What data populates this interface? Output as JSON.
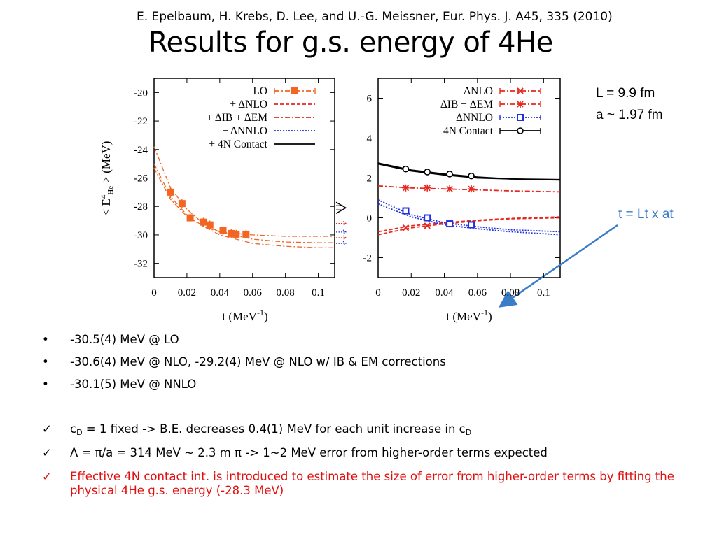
{
  "citation": "E. Epelbaum, H. Krebs, D. Lee, and U.-G. Meissner, Eur. Phys. J. A45, 335 (2010)",
  "title": "Results for g.s. energy of 4He",
  "params": {
    "L": "L = 9.9 fm",
    "a": "a ~ 1.97 fm"
  },
  "t_note": "t = Lt x at",
  "bullets": [
    {
      "marker": "•",
      "text": "-30.5(4) MeV @ LO"
    },
    {
      "marker": "•",
      "text": "-30.6(4) MeV @ NLO, -29.2(4) MeV @ NLO w/ IB & EM corrections"
    },
    {
      "marker": "•",
      "text": "-30.1(5) MeV @ NNLO"
    }
  ],
  "checks": [
    {
      "marker": "✓",
      "pre": "c",
      "sub1": "D",
      "mid": " = 1 fixed -> B.E. decreases 0.4(1) MeV for each unit increase in c",
      "sub2": "D",
      "color": "#000000"
    },
    {
      "marker": "✓",
      "text": "Λ = π/a = 314 MeV ~ 2.3 m  π   -> 1~2 MeV error from higher-order terms expected",
      "color": "#000000"
    },
    {
      "marker": "✓",
      "text": " Effective 4N contact int. is introduced to estimate the size of error from higher-order terms by fitting the physical 4He g.s. energy (-28.3 MeV)",
      "color": "#e01010"
    }
  ],
  "chart_data": [
    {
      "type": "line",
      "xlabel": "t (MeV",
      "xlabel_sup": "-1",
      "xlabel_end": ")",
      "ylabel": "< E",
      "ylabel_sup": "4",
      "ylabel_sub": "He",
      "ylabel_end": " > (MeV)",
      "xlim": [
        0,
        0.11
      ],
      "ylim": [
        -33,
        -19
      ],
      "xticks": [
        "0",
        "0.02",
        "0.04",
        "0.06",
        "0.08",
        "0.1"
      ],
      "xtick_values": [
        0,
        0.02,
        0.04,
        0.06,
        0.08,
        0.1
      ],
      "yticks": [
        "-20",
        "-22",
        "-24",
        "-26",
        "-28",
        "-30",
        "-32"
      ],
      "ytick_values": [
        -20,
        -22,
        -24,
        -26,
        -28,
        -30,
        -32
      ],
      "legend": [
        "LO",
        "+ ΔNLO",
        "+ ΔIB + ΔEM",
        "+ ΔNNLO",
        "+ 4N Contact"
      ],
      "legend_colors": [
        "#f26522",
        "#e8281e",
        "#e8281e",
        "#2030e0",
        "#000000"
      ],
      "legend_placement": "top-right",
      "series": [
        {
          "name": "LO",
          "color": "#f26522",
          "points": [
            {
              "x": 0.01,
              "y": -27.0,
              "err": 0.4
            },
            {
              "x": 0.017,
              "y": -27.8,
              "err": 0.3
            },
            {
              "x": 0.022,
              "y": -28.8,
              "err": 0.3
            },
            {
              "x": 0.03,
              "y": -29.1,
              "err": 0.3
            },
            {
              "x": 0.034,
              "y": -29.3,
              "err": 0.3
            },
            {
              "x": 0.042,
              "y": -29.7,
              "err": 0.3
            },
            {
              "x": 0.047,
              "y": -29.9,
              "err": 0.3
            },
            {
              "x": 0.05,
              "y": -29.95,
              "err": 0.3
            },
            {
              "x": 0.056,
              "y": -29.95,
              "err": 0.3
            }
          ],
          "fits": [
            {
              "x": [
                0,
                0.01,
                0.02,
                0.03,
                0.04,
                0.06,
                0.08,
                0.1,
                0.11
              ],
              "y": [
                -23.8,
                -26.7,
                -28.2,
                -29.2,
                -29.8,
                -30.3,
                -30.5,
                -30.55,
                -30.55
              ]
            },
            {
              "x": [
                0,
                0.01,
                0.02,
                0.03,
                0.04,
                0.06,
                0.08,
                0.1,
                0.11
              ],
              "y": [
                -25.0,
                -27.3,
                -28.6,
                -29.4,
                -30.0,
                -30.6,
                -30.8,
                -30.9,
                -30.9
              ]
            },
            {
              "x": [
                0,
                0.01,
                0.02,
                0.03,
                0.04,
                0.06,
                0.08,
                0.1,
                0.11
              ],
              "y": [
                -25.3,
                -27.5,
                -28.7,
                -29.4,
                -29.8,
                -30.0,
                -30.1,
                -30.1,
                -30.1
              ]
            }
          ]
        }
      ],
      "side_markers": [
        {
          "y": -28.1,
          "color": "#000000",
          "shape": "arrow"
        },
        {
          "y": -29.2,
          "color": "#e8281e",
          "shape": "plus"
        },
        {
          "y": -29.8,
          "color": "#2030e0",
          "shape": "plus"
        },
        {
          "y": -30.2,
          "color": "#e8281e",
          "shape": "plus"
        },
        {
          "y": -30.6,
          "color": "#2030e0",
          "shape": "plus"
        }
      ]
    },
    {
      "type": "line",
      "xlabel": "t (MeV",
      "xlabel_sup": "-1",
      "xlabel_end": ")",
      "xlim": [
        0,
        0.11
      ],
      "ylim": [
        -3,
        7
      ],
      "xticks": [
        "0",
        "0.02",
        "0.04",
        "0.06",
        "0.08",
        "0.1"
      ],
      "xtick_values": [
        0,
        0.02,
        0.04,
        0.06,
        0.08,
        0.1
      ],
      "yticks": [
        "6",
        "4",
        "2",
        "0",
        "-2"
      ],
      "ytick_values": [
        6,
        4,
        2,
        0,
        -2
      ],
      "legend": [
        "ΔNLO",
        "ΔIB + ΔEM",
        "ΔNNLO",
        "4N Contact"
      ],
      "legend_colors": [
        "#e8281e",
        "#e8281e",
        "#2030e0",
        "#000000"
      ],
      "legend_placement": "top-right",
      "series": [
        {
          "name": "ΔNLO",
          "color": "#e8281e",
          "marker": "x",
          "points": [
            {
              "x": 0.0167,
              "y": -0.5
            },
            {
              "x": 0.0297,
              "y": -0.4
            },
            {
              "x": 0.0432,
              "y": -0.3
            },
            {
              "x": 0.0563,
              "y": -0.25
            }
          ],
          "fits": [
            {
              "x": [
                0,
                0.02,
                0.04,
                0.06,
                0.08,
                0.11
              ],
              "y": [
                -0.85,
                -0.5,
                -0.3,
                -0.15,
                -0.05,
                0.0
              ]
            },
            {
              "x": [
                0,
                0.02,
                0.04,
                0.06,
                0.08,
                0.11
              ],
              "y": [
                -0.7,
                -0.4,
                -0.25,
                -0.12,
                -0.03,
                0.05
              ]
            }
          ]
        },
        {
          "name": "ΔIB + ΔEM",
          "color": "#e8281e",
          "marker": "star",
          "points": [
            {
              "x": 0.0167,
              "y": 1.5
            },
            {
              "x": 0.0297,
              "y": 1.5
            },
            {
              "x": 0.0432,
              "y": 1.45
            },
            {
              "x": 0.0563,
              "y": 1.45
            }
          ],
          "fits": [
            {
              "x": [
                0,
                0.02,
                0.04,
                0.06,
                0.08,
                0.11
              ],
              "y": [
                1.6,
                1.5,
                1.45,
                1.4,
                1.35,
                1.3
              ]
            }
          ]
        },
        {
          "name": "ΔNNLO",
          "color": "#2030e0",
          "marker": "square",
          "points": [
            {
              "x": 0.0167,
              "y": 0.35
            },
            {
              "x": 0.0297,
              "y": 0.0
            },
            {
              "x": 0.0432,
              "y": -0.3
            },
            {
              "x": 0.0563,
              "y": -0.35
            }
          ],
          "fits": [
            {
              "x": [
                0,
                0.02,
                0.04,
                0.06,
                0.08,
                0.11
              ],
              "y": [
                0.9,
                0.15,
                -0.25,
                -0.45,
                -0.6,
                -0.7
              ]
            },
            {
              "x": [
                0,
                0.02,
                0.04,
                0.06,
                0.08,
                0.11
              ],
              "y": [
                0.7,
                0.05,
                -0.35,
                -0.55,
                -0.7,
                -0.85
              ]
            }
          ]
        },
        {
          "name": "4N Contact",
          "color": "#000000",
          "marker": "circle",
          "points": [
            {
              "x": 0.0167,
              "y": 2.45
            },
            {
              "x": 0.0297,
              "y": 2.3
            },
            {
              "x": 0.0432,
              "y": 2.2
            },
            {
              "x": 0.0563,
              "y": 2.1
            }
          ],
          "fits": [
            {
              "x": [
                0,
                0.02,
                0.04,
                0.06,
                0.08,
                0.11
              ],
              "y": [
                2.75,
                2.4,
                2.2,
                2.05,
                1.95,
                1.9
              ]
            },
            {
              "x": [
                0,
                0.02,
                0.04,
                0.06,
                0.08,
                0.11
              ],
              "y": [
                2.7,
                2.35,
                2.15,
                2.0,
                1.95,
                1.92
              ]
            }
          ]
        }
      ]
    }
  ]
}
